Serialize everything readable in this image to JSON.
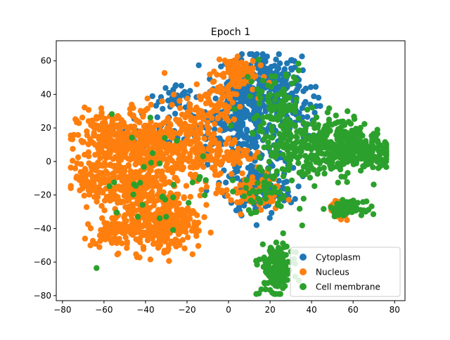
{
  "chart_data": {
    "type": "scatter",
    "title": "Epoch 1",
    "xlabel": "",
    "ylabel": "",
    "xlim": [
      -83,
      85
    ],
    "ylim": [
      -83,
      72
    ],
    "x_ticks": [
      -80,
      -60,
      -40,
      -20,
      0,
      20,
      40,
      60,
      80
    ],
    "y_ticks": [
      -80,
      -60,
      -40,
      -20,
      0,
      20,
      40,
      60
    ],
    "grid": false,
    "legend_position": "lower-right",
    "series": [
      {
        "name": "Cytoplasm",
        "color": "#1f77b4",
        "clusters": [
          {
            "cx": 17,
            "cy": 47,
            "sx": 9,
            "sy": 9,
            "n": 260
          },
          {
            "cx": 5,
            "cy": 30,
            "sx": 8,
            "sy": 9,
            "n": 140
          },
          {
            "cx": 12,
            "cy": 8,
            "sx": 10,
            "sy": 10,
            "n": 160
          },
          {
            "cx": 15,
            "cy": -18,
            "sx": 8,
            "sy": 7,
            "n": 110
          },
          {
            "cx": -25,
            "cy": 38,
            "sx": 4,
            "sy": 4,
            "n": 40
          },
          {
            "cx": -10,
            "cy": 22,
            "sx": 6,
            "sy": 6,
            "n": 40
          },
          {
            "cx": 30,
            "cy": 30,
            "sx": 6,
            "sy": 8,
            "n": 50
          },
          {
            "cx": -40,
            "cy": 18,
            "sx": 8,
            "sy": 6,
            "n": 30
          }
        ]
      },
      {
        "name": "Nucleus",
        "color": "#ff7f0e",
        "clusters": [
          {
            "cx": -55,
            "cy": 12,
            "sx": 9,
            "sy": 9,
            "n": 260
          },
          {
            "cx": -35,
            "cy": 5,
            "sx": 10,
            "sy": 12,
            "n": 280
          },
          {
            "cx": -65,
            "cy": -10,
            "sx": 5,
            "sy": 5,
            "n": 90
          },
          {
            "cx": -48,
            "cy": -18,
            "sx": 8,
            "sy": 6,
            "n": 140
          },
          {
            "cx": -40,
            "cy": -38,
            "sx": 8,
            "sy": 8,
            "n": 190
          },
          {
            "cx": -25,
            "cy": -35,
            "sx": 6,
            "sy": 9,
            "n": 140
          },
          {
            "cx": -58,
            "cy": -42,
            "sx": 4,
            "sy": 3,
            "n": 60
          },
          {
            "cx": -15,
            "cy": 10,
            "sx": 8,
            "sy": 12,
            "n": 150
          },
          {
            "cx": 3,
            "cy": 53,
            "sx": 5,
            "sy": 6,
            "n": 80
          },
          {
            "cx": -5,
            "cy": 35,
            "sx": 6,
            "sy": 8,
            "n": 60
          },
          {
            "cx": 10,
            "cy": -18,
            "sx": 8,
            "sy": 6,
            "n": 70
          },
          {
            "cx": 2,
            "cy": 5,
            "sx": 5,
            "sy": 5,
            "n": 40
          },
          {
            "cx": 52,
            "cy": -30,
            "sx": 3,
            "sy": 3,
            "n": 15
          }
        ]
      },
      {
        "name": "Cell membrane",
        "color": "#2ca02c",
        "clusters": [
          {
            "cx": 52,
            "cy": 12,
            "sx": 8,
            "sy": 8,
            "n": 200
          },
          {
            "cx": 65,
            "cy": 5,
            "sx": 8,
            "sy": 6,
            "n": 170
          },
          {
            "cx": 33,
            "cy": 5,
            "sx": 9,
            "sy": 10,
            "n": 150
          },
          {
            "cx": 23,
            "cy": 35,
            "sx": 8,
            "sy": 12,
            "n": 90
          },
          {
            "cx": 57,
            "cy": -28,
            "sx": 4,
            "sy": 2,
            "n": 70
          },
          {
            "cx": 23,
            "cy": -65,
            "sx": 4,
            "sy": 8,
            "n": 150
          },
          {
            "cx": 15,
            "cy": -20,
            "sx": 8,
            "sy": 6,
            "n": 40
          },
          {
            "cx": -30,
            "cy": -10,
            "sx": 15,
            "sy": 20,
            "n": 35
          }
        ]
      }
    ]
  }
}
